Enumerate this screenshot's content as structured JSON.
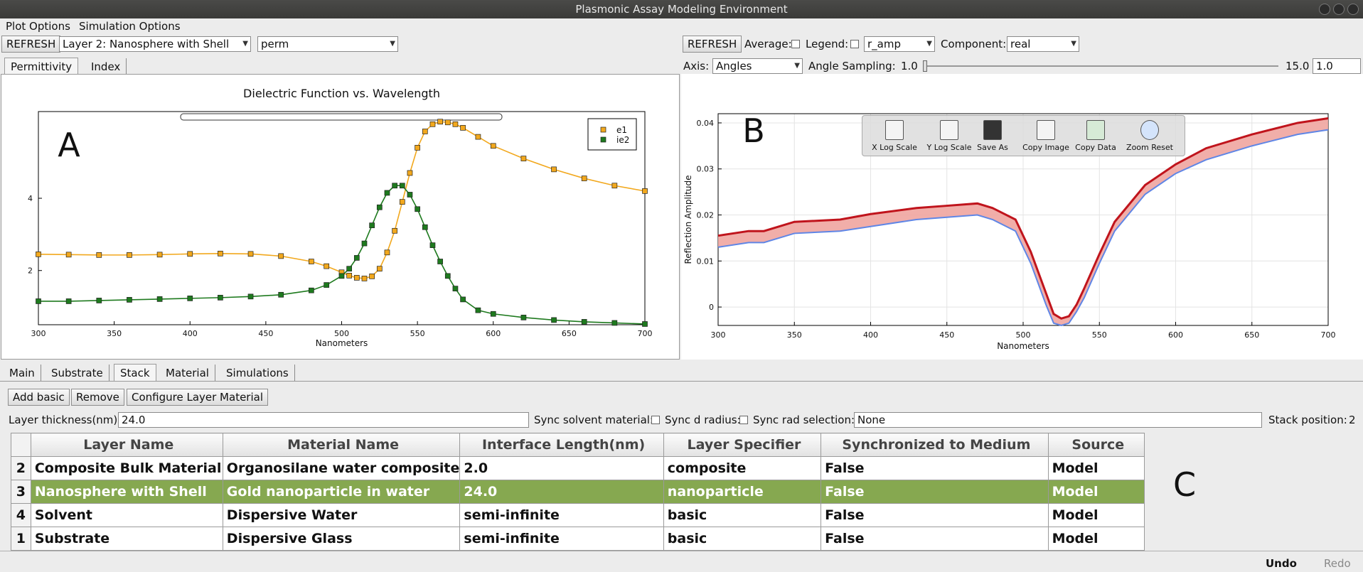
{
  "window": {
    "title": "Plasmonic Assay Modeling Environment"
  },
  "menu": {
    "items": [
      "Plot Options",
      "Simulation Options"
    ]
  },
  "left_toolbar": {
    "refresh_label": "REFRESH",
    "layer_select": "Layer 2: Nanosphere with Shell",
    "quantity_select": "perm",
    "tabs": [
      "Permittivity",
      "Index"
    ]
  },
  "right_toolbar": {
    "refresh_label": "REFRESH",
    "average_label": "Average:",
    "legend_label": "Legend:",
    "r_select": "r_amp",
    "component_label": "Component:",
    "component_select": "real",
    "axis_label": "Axis:",
    "axis_select": "Angles",
    "angle_sampling_label": "Angle Sampling:",
    "slider_min": "1.0",
    "slider_max": "15.0",
    "slider_value": "1.0"
  },
  "plot_toolbar": {
    "items": [
      {
        "label": "X Log Scale",
        "icon": "x-log-scale-icon"
      },
      {
        "label": "Y Log Scale",
        "icon": "y-log-scale-icon"
      },
      {
        "label": "Save As",
        "icon": "save-icon"
      },
      {
        "label": "Copy Image",
        "icon": "copy-image-icon"
      },
      {
        "label": "Copy Data",
        "icon": "copy-data-icon"
      },
      {
        "label": "Zoom Reset",
        "icon": "zoom-reset-icon"
      }
    ]
  },
  "panel_letters": {
    "a": "A",
    "b": "B",
    "c": "C"
  },
  "chart_data": [
    {
      "type": "scatter",
      "title": "Dielectric Function vs. Wavelength",
      "xlabel": "Nanometers",
      "ylabel": "",
      "xlim": [
        300,
        700
      ],
      "ylim": [
        0.5,
        6.4
      ],
      "xticks": [
        300,
        350,
        400,
        450,
        500,
        550,
        600,
        650,
        700
      ],
      "yticks": [
        2,
        4
      ],
      "legend": "top-right",
      "series": [
        {
          "name": "e1",
          "color": "#f2a81d",
          "x": [
            300,
            320,
            340,
            360,
            380,
            400,
            420,
            440,
            460,
            480,
            490,
            500,
            505,
            510,
            515,
            520,
            525,
            530,
            535,
            540,
            545,
            550,
            555,
            560,
            565,
            570,
            575,
            580,
            590,
            600,
            620,
            640,
            660,
            680,
            700
          ],
          "y": [
            2.45,
            2.44,
            2.43,
            2.43,
            2.44,
            2.46,
            2.47,
            2.46,
            2.4,
            2.25,
            2.12,
            1.95,
            1.86,
            1.8,
            1.78,
            1.84,
            2.05,
            2.5,
            3.1,
            3.9,
            4.7,
            5.4,
            5.85,
            6.05,
            6.12,
            6.1,
            6.05,
            5.95,
            5.7,
            5.45,
            5.1,
            4.8,
            4.55,
            4.35,
            4.2
          ]
        },
        {
          "name": "ie2",
          "color": "#1e7a1e",
          "x": [
            300,
            320,
            340,
            360,
            380,
            400,
            420,
            440,
            460,
            480,
            490,
            500,
            505,
            510,
            515,
            520,
            525,
            530,
            535,
            540,
            545,
            550,
            555,
            560,
            565,
            570,
            575,
            580,
            590,
            600,
            620,
            640,
            660,
            680,
            700
          ],
          "y": [
            1.15,
            1.15,
            1.17,
            1.19,
            1.21,
            1.23,
            1.25,
            1.28,
            1.33,
            1.45,
            1.6,
            1.85,
            2.05,
            2.35,
            2.75,
            3.25,
            3.75,
            4.15,
            4.35,
            4.35,
            4.1,
            3.7,
            3.2,
            2.7,
            2.25,
            1.85,
            1.5,
            1.2,
            0.9,
            0.8,
            0.7,
            0.63,
            0.58,
            0.55,
            0.52
          ]
        }
      ]
    },
    {
      "type": "line",
      "title": "",
      "xlabel": "Nanometers",
      "ylabel": "Reflection Amplitude",
      "xlim": [
        300,
        700
      ],
      "ylim": [
        -0.004,
        0.042
      ],
      "xticks": [
        300,
        350,
        400,
        450,
        500,
        550,
        600,
        650,
        700
      ],
      "yticks": [
        0,
        0.01,
        0.02,
        0.03,
        0.04
      ],
      "series": [
        {
          "name": "",
          "color": "#c0141c",
          "x": [
            300,
            320,
            330,
            350,
            380,
            400,
            430,
            450,
            470,
            480,
            495,
            505,
            515,
            520,
            525,
            530,
            535,
            540,
            550,
            560,
            580,
            600,
            620,
            650,
            680,
            700
          ],
          "y": [
            0.0155,
            0.0165,
            0.0165,
            0.0185,
            0.019,
            0.0202,
            0.0215,
            0.022,
            0.0225,
            0.0215,
            0.019,
            0.012,
            0.003,
            -0.0015,
            -0.0025,
            -0.002,
            0.0005,
            0.004,
            0.0115,
            0.0185,
            0.0265,
            0.031,
            0.0345,
            0.0375,
            0.04,
            0.041
          ]
        },
        {
          "name": "",
          "color": "#5f86e6",
          "x": [
            300,
            320,
            330,
            350,
            380,
            400,
            430,
            450,
            470,
            480,
            495,
            505,
            515,
            520,
            525,
            530,
            535,
            540,
            550,
            560,
            580,
            600,
            620,
            650,
            680,
            700
          ],
          "y": [
            0.013,
            0.014,
            0.014,
            0.016,
            0.0165,
            0.0175,
            0.019,
            0.0195,
            0.02,
            0.019,
            0.0165,
            0.0095,
            0.0005,
            -0.0035,
            -0.004,
            -0.0035,
            -0.001,
            0.002,
            0.0095,
            0.0165,
            0.0245,
            0.029,
            0.032,
            0.035,
            0.0375,
            0.0385
          ]
        }
      ]
    }
  ],
  "bottom_tabs": [
    "Main",
    "Substrate",
    "Stack",
    "Material",
    "Simulations"
  ],
  "stack": {
    "buttons": [
      "Add basic",
      "Remove",
      "Configure Layer Material"
    ],
    "thickness_label": "Layer thickness(nm):",
    "thickness_value": "24.0",
    "sync_solvent_label": "Sync solvent material:",
    "sync_d_label": "Sync d radius:",
    "sync_rad_label": "Sync rad selection:",
    "sync_rad_value": "None",
    "stack_position_label": "Stack position:",
    "stack_position_value": "2"
  },
  "table": {
    "columns": [
      "Layer Name",
      "Material Name",
      "Interface Length(nm)",
      "Layer Specifier",
      "Synchronized to Medium",
      "Source"
    ],
    "rows": [
      [
        "2",
        "Composite Bulk Material",
        "Organosilane water composite",
        "2.0",
        "composite",
        "False",
        "Model"
      ],
      [
        "3",
        "Nanosphere with Shell",
        "Gold nanoparticle in water",
        "24.0",
        "nanoparticle",
        "False",
        "Model"
      ],
      [
        "4",
        "Solvent",
        "Dispersive Water",
        "semi-infinite",
        "basic",
        "False",
        "Model"
      ],
      [
        "1",
        "Substrate",
        "Dispersive Glass",
        "semi-infinite",
        "basic",
        "False",
        "Model"
      ]
    ],
    "selected_row": 1
  },
  "footer": {
    "undo_label": "Undo",
    "redo_label": "Redo"
  }
}
